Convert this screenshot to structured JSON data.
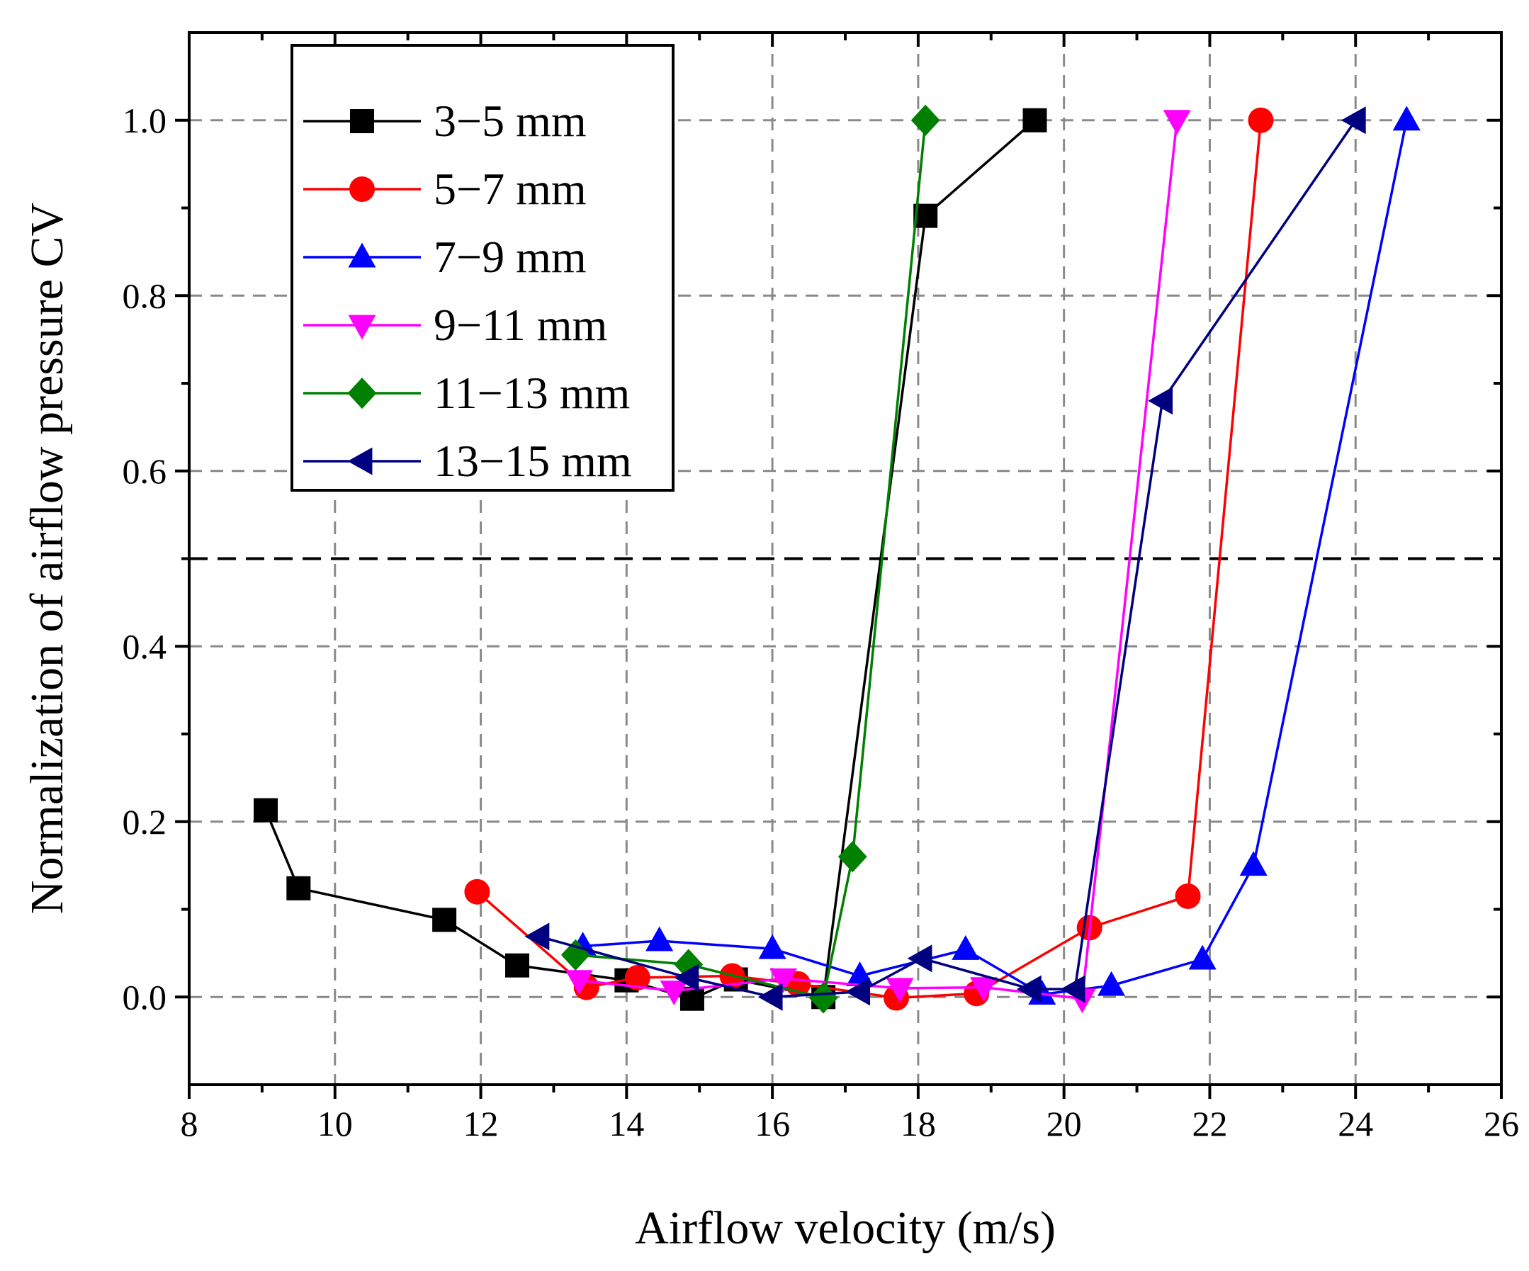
{
  "chart_data": {
    "type": "line",
    "xlabel": "Airflow velocity (m/s)",
    "ylabel": "Normalization of airflow pressure CV",
    "xlim": [
      8,
      26
    ],
    "ylim": [
      -0.1,
      1.1
    ],
    "xticks": [
      8,
      10,
      12,
      14,
      16,
      18,
      20,
      22,
      24,
      26
    ],
    "xtick_labels": [
      "8",
      "10",
      "12",
      "14",
      "16",
      "18",
      "20",
      "22",
      "24",
      "26"
    ],
    "yticks": [
      0.0,
      0.2,
      0.4,
      0.6,
      0.8,
      1.0
    ],
    "ytick_labels": [
      "0.0",
      "0.2",
      "0.4",
      "0.6",
      "0.8",
      "1.0"
    ],
    "grid": true,
    "legend_position": "top-left",
    "reference_line": {
      "y": 0.5,
      "style": "dashed"
    },
    "series": [
      {
        "name": "3−5 mm",
        "color": "#000000",
        "marker": "square",
        "points": [
          [
            9.05,
            0.213
          ],
          [
            9.5,
            0.124
          ],
          [
            11.5,
            0.088
          ],
          [
            12.5,
            0.036
          ],
          [
            14.0,
            0.019
          ],
          [
            14.9,
            -0.002
          ],
          [
            15.5,
            0.02
          ],
          [
            16.7,
            0.0
          ],
          [
            18.1,
            0.891
          ],
          [
            19.6,
            1.0
          ]
        ]
      },
      {
        "name": "5−7 mm",
        "color": "#ff0000",
        "marker": "circle",
        "points": [
          [
            11.95,
            0.12
          ],
          [
            13.45,
            0.011
          ],
          [
            14.15,
            0.022
          ],
          [
            15.45,
            0.024
          ],
          [
            16.35,
            0.015
          ],
          [
            17.7,
            -0.001
          ],
          [
            18.8,
            0.004
          ],
          [
            20.35,
            0.079
          ],
          [
            21.7,
            0.115
          ],
          [
            22.7,
            1.0
          ]
        ]
      },
      {
        "name": "7−9 mm",
        "color": "#0000ff",
        "marker": "triangle-up",
        "points": [
          [
            13.4,
            0.058
          ],
          [
            14.45,
            0.064
          ],
          [
            16.0,
            0.055
          ],
          [
            17.2,
            0.024
          ],
          [
            18.65,
            0.054
          ],
          [
            19.7,
            0.003
          ],
          [
            20.65,
            0.013
          ],
          [
            21.9,
            0.043
          ],
          [
            22.6,
            0.15
          ],
          [
            24.7,
            1.0
          ]
        ]
      },
      {
        "name": "9−11 mm",
        "color": "#ff00ff",
        "marker": "triangle-down",
        "points": [
          [
            13.35,
            0.019
          ],
          [
            14.65,
            0.007
          ],
          [
            16.15,
            0.021
          ],
          [
            17.75,
            0.01
          ],
          [
            18.9,
            0.011
          ],
          [
            20.25,
            -0.002
          ],
          [
            21.55,
            1.0
          ]
        ]
      },
      {
        "name": "11−13 mm",
        "color": "#008000",
        "marker": "diamond",
        "points": [
          [
            13.3,
            0.048
          ],
          [
            14.85,
            0.037
          ],
          [
            16.7,
            -0.001
          ],
          [
            17.1,
            0.16
          ],
          [
            18.1,
            1.0
          ]
        ]
      },
      {
        "name": "13−15 mm",
        "color": "#000080",
        "marker": "triangle-left",
        "points": [
          [
            12.8,
            0.069
          ],
          [
            14.85,
            0.022
          ],
          [
            16.0,
            0.0
          ],
          [
            17.2,
            0.006
          ],
          [
            18.05,
            0.044
          ],
          [
            19.55,
            0.009
          ],
          [
            20.15,
            0.009
          ],
          [
            21.35,
            0.68
          ],
          [
            24.0,
            1.0
          ]
        ]
      }
    ]
  }
}
